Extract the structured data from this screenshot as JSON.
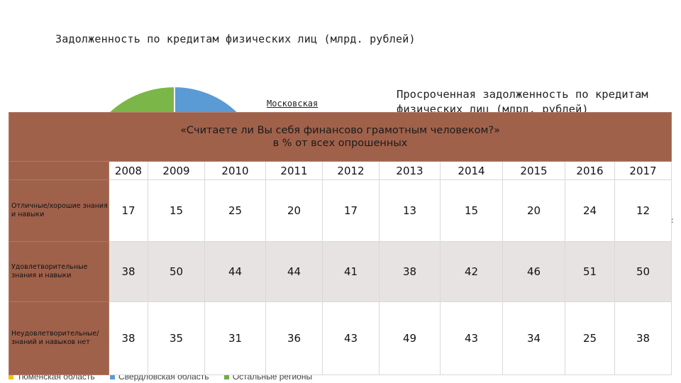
{
  "background": {
    "left_title": "Задолженность по кредитам физических лиц (млрд. рублей)",
    "pie_label": "Московская",
    "right_title_line1": "Просроченная задолженность по кредитам",
    "right_title_line2": "физических лиц (млрд. рублей)",
    "legend": [
      {
        "label": "Тюменская область",
        "color": "#f2c200"
      },
      {
        "label": "Свердловская область",
        "color": "#5b9bd5"
      },
      {
        "label": "Остальные регионы",
        "color": "#70ad47"
      }
    ],
    "colors": {
      "pie_green": "#7ab648",
      "pie_blue": "#5b9bd5"
    }
  },
  "survey": {
    "title_line1": "«Считаете ли Вы себя финансово грамотным человеком?»",
    "title_line2": "в % от всех опрошенных",
    "header_color": "#a0614a",
    "years": [
      "2008",
      "2009",
      "2010",
      "2011",
      "2012",
      "2013",
      "2014",
      "2015",
      "2016",
      "2017"
    ],
    "rows": [
      {
        "label": "Отличные/хорошие знания и навыки",
        "values": [
          "17",
          "15",
          "25",
          "20",
          "17",
          "13",
          "15",
          "20",
          "24",
          "12"
        ]
      },
      {
        "label": "Удовлетворительные знания и навыки",
        "values": [
          "38",
          "50",
          "44",
          "44",
          "41",
          "38",
          "42",
          "46",
          "51",
          "50"
        ]
      },
      {
        "label": "Неудовлетворительные/ знаний и навыков нет",
        "values": [
          "38",
          "35",
          "31",
          "36",
          "43",
          "49",
          "43",
          "34",
          "25",
          "38"
        ]
      }
    ]
  }
}
